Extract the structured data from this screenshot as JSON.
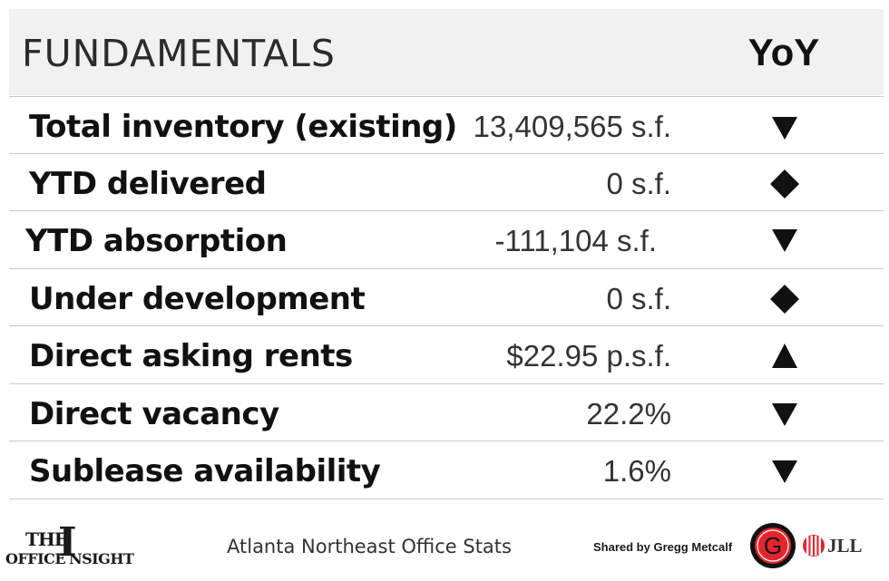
{
  "header": {
    "title": "FUNDAMENTALS",
    "yoy_label": "YoY"
  },
  "rows": [
    {
      "label": "Total inventory (existing)",
      "value": "13,409,565 s.f.",
      "trend": "down-triangle-icon"
    },
    {
      "label": "YTD delivered",
      "value": "0 s.f.",
      "trend": "diamond-icon"
    },
    {
      "label": "YTD absorption",
      "value": "-111,104 s.f.",
      "trend": "down-triangle-icon"
    },
    {
      "label": "Under development",
      "value": "0 s.f.",
      "trend": "diamond-icon"
    },
    {
      "label": "Direct asking rents",
      "value": "$22.95 p.s.f.",
      "trend": "up-triangle-icon"
    },
    {
      "label": "Direct vacancy",
      "value": "22.2%",
      "trend": "down-triangle-icon"
    },
    {
      "label": "Sublease availability",
      "value": "1.6%",
      "trend": "down-triangle-icon"
    }
  ],
  "footer": {
    "logo_the": "THE",
    "logo_i": "I",
    "logo_office": "OFFICE",
    "logo_insight": "NSIGHT",
    "caption": "Atlanta Northeast Office Stats",
    "shared_by": "Shared by Gregg Metcalf",
    "g_logo_letter": "G",
    "jll_text": "JLL"
  },
  "colors": {
    "header_bg": "#f1f1f1",
    "divider": "#c9c9c9",
    "icon": "#111111",
    "g_red": "#e3262e"
  }
}
